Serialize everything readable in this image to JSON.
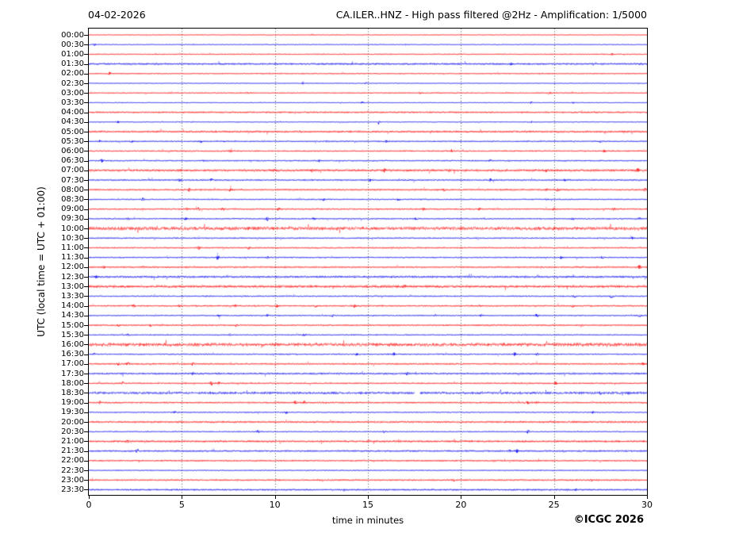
{
  "figure": {
    "date_label": "04-02-2026",
    "title": "CA.ILER..HNZ - High pass filtered @2Hz - Amplification: 1/5000",
    "ylabel": "UTC (local time = UTC + 01:00)",
    "xlabel": "time in minutes",
    "copyright": "©ICGC 2026",
    "background": "#ffffff"
  },
  "axes": {
    "x_ticks": [
      0,
      5,
      10,
      15,
      20,
      25,
      30
    ],
    "x_range": [
      0,
      30
    ],
    "grid_minutes": [
      5,
      10,
      15,
      20,
      25
    ],
    "grid_color": "#555555",
    "axis_color": "#000000",
    "grid_style": "dotted"
  },
  "colors": {
    "hour_trace": "#ff0000",
    "half_hour_trace": "#0000ee"
  },
  "chart_data": {
    "type": "line",
    "subtype": "helicorder-seismogram",
    "station": "CA.ILER..HNZ",
    "date": "04-02-2026",
    "title": "CA.ILER..HNZ - High pass filtered @2Hz - Amplification: 1/5000",
    "xlabel": "time in minutes",
    "ylabel": "UTC (local time = UTC + 01:00)",
    "x_range": [
      0,
      30
    ],
    "row_interval_minutes": 30,
    "grid": "vertical dotted every 5 minutes",
    "legend": "red = trace starting on the hour, blue = trace starting on the half hour",
    "traces": [
      {
        "label": "00:00",
        "color": "r",
        "noise": 0.45,
        "fuzz": 0,
        "events": [
          [
            12,
            1.4
          ]
        ]
      },
      {
        "label": "00:30",
        "color": "b",
        "noise": 0.45,
        "fuzz": 0,
        "events": [
          [
            0.3,
            1.3
          ]
        ]
      },
      {
        "label": "01:00",
        "color": "r",
        "noise": 0.45,
        "fuzz": 0.15,
        "events": [
          [
            28.1,
            1.4
          ]
        ]
      },
      {
        "label": "01:30",
        "color": "b",
        "noise": 0.5,
        "fuzz": 0.5,
        "events": [
          [
            22.7,
            1.3
          ]
        ]
      },
      {
        "label": "02:00",
        "color": "r",
        "noise": 0.5,
        "fuzz": 0.15,
        "events": [
          [
            1.1,
            2.4
          ]
        ]
      },
      {
        "label": "02:30",
        "color": "b",
        "noise": 0.45,
        "fuzz": 0,
        "events": [
          [
            11.5,
            1.3
          ],
          [
            14.9,
            1.2
          ]
        ]
      },
      {
        "label": "03:00",
        "color": "r",
        "noise": 0.5,
        "fuzz": 0.15,
        "events": [
          [
            8.5,
            1.3
          ],
          [
            17.8,
            1.2
          ],
          [
            24.8,
            1.2
          ]
        ]
      },
      {
        "label": "03:30",
        "color": "b",
        "noise": 0.45,
        "fuzz": 0,
        "events": [
          [
            14.7,
            1.2
          ],
          [
            23.8,
            1.3
          ],
          [
            26,
            1.2
          ]
        ]
      },
      {
        "label": "04:00",
        "color": "r",
        "noise": 0.55,
        "fuzz": 0.35,
        "events": [
          [
            15,
            1.2
          ]
        ]
      },
      {
        "label": "04:30",
        "color": "b",
        "noise": 0.5,
        "fuzz": 0,
        "events": [
          [
            1.6,
            1.5
          ],
          [
            15.6,
            1.2
          ],
          [
            23.8,
            1.2
          ]
        ]
      },
      {
        "label": "05:00",
        "color": "r",
        "noise": 0.6,
        "fuzz": 0.45,
        "events": []
      },
      {
        "label": "05:30",
        "color": "b",
        "noise": 0.55,
        "fuzz": 0.2,
        "events": [
          [
            0.6,
            1.3
          ],
          [
            2.3,
            1.3
          ],
          [
            6,
            1.2
          ],
          [
            12.8,
            1.3
          ],
          [
            16,
            1.2
          ],
          [
            27.5,
            1.4
          ]
        ]
      },
      {
        "label": "06:00",
        "color": "r",
        "noise": 0.6,
        "fuzz": 0.2,
        "events": [
          [
            7.6,
            1.7
          ],
          [
            19.5,
            1.7
          ],
          [
            27.7,
            1.9
          ]
        ]
      },
      {
        "label": "06:30",
        "color": "b",
        "noise": 0.6,
        "fuzz": 0.15,
        "events": [
          [
            0.7,
            1.9
          ],
          [
            6.2,
            1.5
          ],
          [
            12.4,
            1.7
          ],
          [
            21.6,
            1.9
          ]
        ]
      },
      {
        "label": "07:00",
        "color": "r",
        "noise": 0.75,
        "fuzz": 0.45,
        "events": [
          [
            10,
            1.9
          ],
          [
            12,
            1.7
          ],
          [
            15.9,
            2.1
          ],
          [
            19.4,
            1.9
          ],
          [
            24.6,
            1.7
          ],
          [
            29.5,
            2.3
          ]
        ]
      },
      {
        "label": "07:30",
        "color": "b",
        "noise": 0.65,
        "fuzz": 0.2,
        "events": [
          [
            4.9,
            2.1
          ],
          [
            6.6,
            1.9
          ],
          [
            15.1,
            2.1
          ],
          [
            21.6,
            1.9
          ],
          [
            25.6,
            1.7
          ]
        ]
      },
      {
        "label": "08:00",
        "color": "r",
        "noise": 0.65,
        "fuzz": 0.25,
        "events": [
          [
            5.4,
            1.9
          ],
          [
            7.6,
            1.7
          ],
          [
            19.1,
            1.9
          ],
          [
            24.6,
            2.3
          ],
          [
            25.2,
            2.1
          ],
          [
            29.9,
            1.9
          ]
        ]
      },
      {
        "label": "08:30",
        "color": "b",
        "noise": 0.6,
        "fuzz": 0.1,
        "events": [
          [
            2.9,
            1.9
          ],
          [
            12.6,
            1.7
          ],
          [
            16.6,
            1.7
          ],
          [
            24.6,
            1.5
          ]
        ]
      },
      {
        "label": "09:00",
        "color": "r",
        "noise": 0.65,
        "fuzz": 0.2,
        "events": [
          [
            5.3,
            2.8
          ],
          [
            5.9,
            2.4
          ],
          [
            7.2,
            2.4
          ],
          [
            10.2,
            1.7
          ],
          [
            18,
            1.5
          ],
          [
            21,
            1.7
          ],
          [
            25,
            2.1
          ],
          [
            28.2,
            1.7
          ]
        ]
      },
      {
        "label": "09:30",
        "color": "b",
        "noise": 0.6,
        "fuzz": 0.15,
        "events": [
          [
            2.1,
            1.7
          ],
          [
            5.2,
            1.5
          ],
          [
            9.6,
            2.4
          ],
          [
            12.1,
            1.7
          ],
          [
            17.6,
            1.5
          ],
          [
            26,
            1.7
          ],
          [
            29.6,
            1.5
          ]
        ]
      },
      {
        "label": "10:00",
        "color": "r",
        "noise": 0.8,
        "fuzz": 0.85,
        "events": []
      },
      {
        "label": "10:30",
        "color": "b",
        "noise": 0.6,
        "fuzz": 0.15,
        "events": [
          [
            29.2,
            1.5
          ]
        ]
      },
      {
        "label": "11:00",
        "color": "r",
        "noise": 0.6,
        "fuzz": 0.2,
        "events": [
          [
            5.9,
            2.1
          ],
          [
            8.6,
            1.7
          ]
        ]
      },
      {
        "label": "11:30",
        "color": "b",
        "noise": 0.6,
        "fuzz": 0.15,
        "events": [
          [
            6.9,
            2.4
          ],
          [
            9.6,
            1.5
          ],
          [
            25.4,
            1.7
          ],
          [
            27.6,
            1.5
          ]
        ]
      },
      {
        "label": "12:00",
        "color": "r",
        "noise": 0.65,
        "fuzz": 0.25,
        "events": [
          [
            0.8,
            1.9
          ],
          [
            2.9,
            1.7
          ],
          [
            29.6,
            2.6
          ]
        ]
      },
      {
        "label": "12:30",
        "color": "b",
        "noise": 0.65,
        "fuzz": 0.45,
        "events": [
          [
            0.4,
            1.9
          ]
        ]
      },
      {
        "label": "13:00",
        "color": "r",
        "noise": 0.75,
        "fuzz": 0.55,
        "events": [
          [
            17,
            1.7
          ]
        ]
      },
      {
        "label": "13:30",
        "color": "b",
        "noise": 0.6,
        "fuzz": 0.15,
        "events": [
          [
            26.1,
            2.1
          ],
          [
            28.1,
            2.6
          ]
        ]
      },
      {
        "label": "14:00",
        "color": "r",
        "noise": 0.65,
        "fuzz": 0.2,
        "events": [
          [
            2.4,
            2.8
          ],
          [
            4.9,
            1.7
          ],
          [
            7.9,
            1.7
          ],
          [
            10.1,
            2.1
          ],
          [
            12.2,
            1.7
          ],
          [
            14.3,
            2.4
          ],
          [
            21,
            1.5
          ],
          [
            26,
            1.5
          ]
        ]
      },
      {
        "label": "14:30",
        "color": "b",
        "noise": 0.6,
        "fuzz": 0.1,
        "events": [
          [
            7,
            1.5
          ],
          [
            9.6,
            1.5
          ],
          [
            13.1,
            1.5
          ],
          [
            18.6,
            1.5
          ],
          [
            21.1,
            1.7
          ],
          [
            24.1,
            1.5
          ],
          [
            29.6,
            2.1
          ]
        ]
      },
      {
        "label": "15:00",
        "color": "r",
        "noise": 0.65,
        "fuzz": 0.2,
        "events": [
          [
            1.6,
            1.9
          ],
          [
            3.3,
            2.4
          ],
          [
            7.9,
            1.7
          ]
        ]
      },
      {
        "label": "15:30",
        "color": "b",
        "noise": 0.6,
        "fuzz": 0.1,
        "events": [
          [
            2.1,
            1.7
          ],
          [
            7.6,
            2.1
          ],
          [
            11.6,
            1.9
          ]
        ]
      },
      {
        "label": "16:00",
        "color": "r",
        "noise": 0.8,
        "fuzz": 0.85,
        "events": []
      },
      {
        "label": "16:30",
        "color": "b",
        "noise": 0.6,
        "fuzz": 0.15,
        "events": [
          [
            0.3,
            1.9
          ],
          [
            14.4,
            1.7
          ],
          [
            16.4,
            2.1
          ],
          [
            22.9,
            2.6
          ],
          [
            24.1,
            1.7
          ]
        ]
      },
      {
        "label": "17:00",
        "color": "r",
        "noise": 0.65,
        "fuzz": 0.25,
        "events": [
          [
            1.6,
            2.1
          ],
          [
            2.1,
            1.9
          ],
          [
            5.6,
            2.4
          ],
          [
            29.8,
            1.7
          ]
        ]
      },
      {
        "label": "17:30",
        "color": "b",
        "noise": 0.65,
        "fuzz": 0.35,
        "events": [
          [
            5.6,
            1.7
          ],
          [
            17.1,
            1.5
          ]
        ]
      },
      {
        "label": "18:00",
        "color": "r",
        "noise": 0.6,
        "fuzz": 0.2,
        "events": [
          [
            1.8,
            1.9
          ],
          [
            6.6,
            2.8
          ],
          [
            7,
            2.4
          ],
          [
            25.1,
            1.7
          ]
        ]
      },
      {
        "label": "18:30",
        "color": "b",
        "noise": 0.45,
        "fuzz": 0.85,
        "events": [
          [
            27.5,
            1.4
          ],
          [
            29,
            1.3
          ]
        ],
        "gaps": [
          [
            17.5,
            17.8
          ]
        ]
      },
      {
        "label": "19:00",
        "color": "r",
        "noise": 0.65,
        "fuzz": 0.25,
        "events": [
          [
            0.6,
            1.9
          ],
          [
            11.1,
            2.1
          ],
          [
            11.6,
            1.9
          ],
          [
            23.6,
            2.1
          ],
          [
            24.1,
            1.9
          ]
        ]
      },
      {
        "label": "19:30",
        "color": "b",
        "noise": 0.55,
        "fuzz": 0.1,
        "events": [
          [
            4.6,
            1.5
          ],
          [
            10.6,
            1.7
          ],
          [
            27.1,
            1.5
          ]
        ]
      },
      {
        "label": "20:00",
        "color": "r",
        "noise": 0.65,
        "fuzz": 0.35,
        "events": [
          [
            12.1,
            1.5
          ],
          [
            26.1,
            1.4
          ]
        ]
      },
      {
        "label": "20:30",
        "color": "b",
        "noise": 0.55,
        "fuzz": 0.1,
        "events": [
          [
            9.1,
            1.9
          ],
          [
            15.9,
            1.5
          ],
          [
            23.6,
            2.4
          ]
        ]
      },
      {
        "label": "21:00",
        "color": "r",
        "noise": 0.65,
        "fuzz": 0.45,
        "events": [
          [
            2.1,
            1.7
          ]
        ]
      },
      {
        "label": "21:30",
        "color": "b",
        "noise": 0.6,
        "fuzz": 0.35,
        "events": [
          [
            2.6,
            2.6
          ],
          [
            22.6,
            2.4
          ],
          [
            23,
            2.1
          ]
        ]
      },
      {
        "label": "22:00",
        "color": "r",
        "noise": 0.55,
        "fuzz": 0.3,
        "events": []
      },
      {
        "label": "22:30",
        "color": "b",
        "noise": 0.5,
        "fuzz": 0.1,
        "events": []
      },
      {
        "label": "23:00",
        "color": "r",
        "noise": 0.55,
        "fuzz": 0.3,
        "events": [
          [
            19.6,
            1.5
          ],
          [
            27,
            1.4
          ]
        ]
      },
      {
        "label": "23:30",
        "color": "b",
        "noise": 0.4,
        "fuzz": 0.5,
        "events": [
          [
            26.2,
            1.3
          ]
        ]
      }
    ]
  }
}
